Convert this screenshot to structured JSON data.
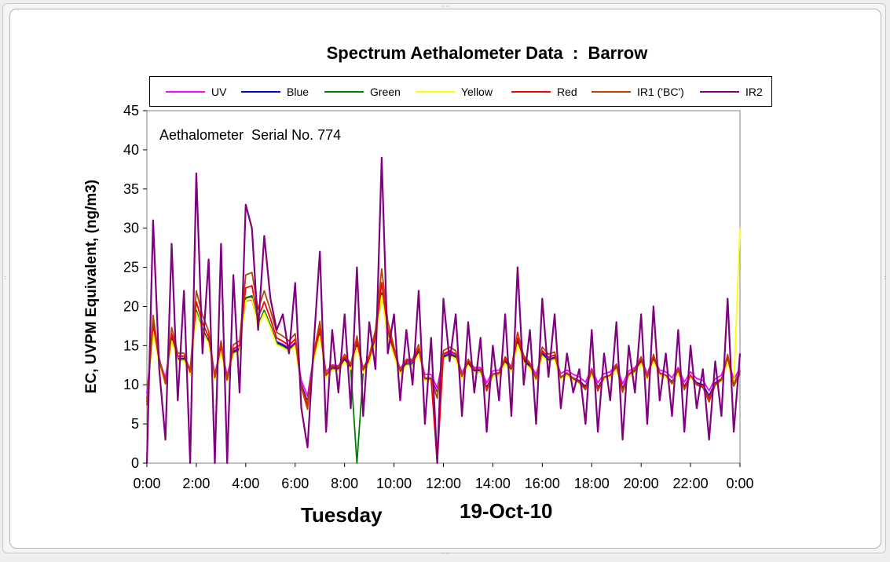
{
  "chart_data": {
    "type": "line",
    "title": "Spectrum Aethalometer Data  :  Barrow",
    "ylabel": "EC, UVPM Equivalent, (ng/m3)",
    "xlabel": "Tuesday",
    "date_label": "19-Oct-10",
    "annotation": "Aethalometer  Serial No. 774",
    "ylim": [
      0,
      45
    ],
    "y_ticks": [
      "0",
      "5",
      "10",
      "15",
      "20",
      "25",
      "30",
      "35",
      "40",
      "45"
    ],
    "xlim_hours": [
      0,
      24
    ],
    "x_ticks": [
      "0:00",
      "2:00",
      "4:00",
      "6:00",
      "8:00",
      "10:00",
      "12:00",
      "14:00",
      "16:00",
      "18:00",
      "20:00",
      "22:00",
      "0:00"
    ],
    "grid": false,
    "legend_placement": "top",
    "series": [
      {
        "name": "UV",
        "color": "#ff00ff"
      },
      {
        "name": "Blue",
        "color": "#0000cc"
      },
      {
        "name": "Green",
        "color": "#008000"
      },
      {
        "name": "Yellow",
        "color": "#ffff00"
      },
      {
        "name": "Red",
        "color": "#ff0000"
      },
      {
        "name": "IR1 ('BC')",
        "color": "#b34700"
      },
      {
        "name": "IR2",
        "color": "#800080"
      }
    ],
    "x_hours": [
      0.0,
      0.25,
      0.5,
      0.75,
      1.0,
      1.25,
      1.5,
      1.75,
      2.0,
      2.25,
      2.5,
      2.75,
      3.0,
      3.25,
      3.5,
      3.75,
      4.0,
      4.25,
      4.5,
      4.75,
      5.0,
      5.25,
      5.5,
      5.75,
      6.0,
      6.25,
      6.5,
      6.75,
      7.0,
      7.25,
      7.5,
      7.75,
      8.0,
      8.25,
      8.5,
      8.75,
      9.0,
      9.25,
      9.5,
      9.75,
      10.0,
      10.25,
      10.5,
      10.75,
      11.0,
      11.25,
      11.5,
      11.75,
      12.0,
      12.25,
      12.5,
      12.75,
      13.0,
      13.25,
      13.5,
      13.75,
      14.0,
      14.25,
      14.5,
      14.75,
      15.0,
      15.25,
      15.5,
      15.75,
      16.0,
      16.25,
      16.5,
      16.75,
      17.0,
      17.25,
      17.5,
      17.75,
      18.0,
      18.25,
      18.5,
      18.75,
      19.0,
      19.25,
      19.5,
      19.75,
      20.0,
      20.25,
      20.5,
      20.75,
      21.0,
      21.25,
      21.5,
      21.75,
      22.0,
      22.25,
      22.5,
      22.75,
      23.0,
      23.25,
      23.5,
      23.75,
      24.0
    ],
    "ir2_values": [
      0,
      31,
      12,
      3,
      28,
      8,
      22,
      0,
      37,
      14,
      26,
      0,
      28,
      0,
      24,
      9,
      33,
      30,
      17,
      29,
      21,
      17,
      19,
      14,
      23,
      7,
      2,
      15,
      27,
      4,
      17,
      9,
      19,
      7,
      25,
      6,
      18,
      12,
      39,
      14,
      19,
      8,
      17,
      10,
      22,
      5,
      16,
      0,
      21,
      13,
      19,
      6,
      18,
      9,
      16,
      4,
      15,
      8,
      19,
      6,
      25,
      10,
      17,
      5,
      21,
      11,
      19,
      7,
      14,
      9,
      12,
      5,
      17,
      4,
      14,
      8,
      18,
      3,
      15,
      9,
      19,
      5,
      20,
      8,
      14,
      6,
      17,
      4,
      15,
      7,
      12,
      3,
      13,
      6,
      21,
      4,
      14
    ]
  }
}
